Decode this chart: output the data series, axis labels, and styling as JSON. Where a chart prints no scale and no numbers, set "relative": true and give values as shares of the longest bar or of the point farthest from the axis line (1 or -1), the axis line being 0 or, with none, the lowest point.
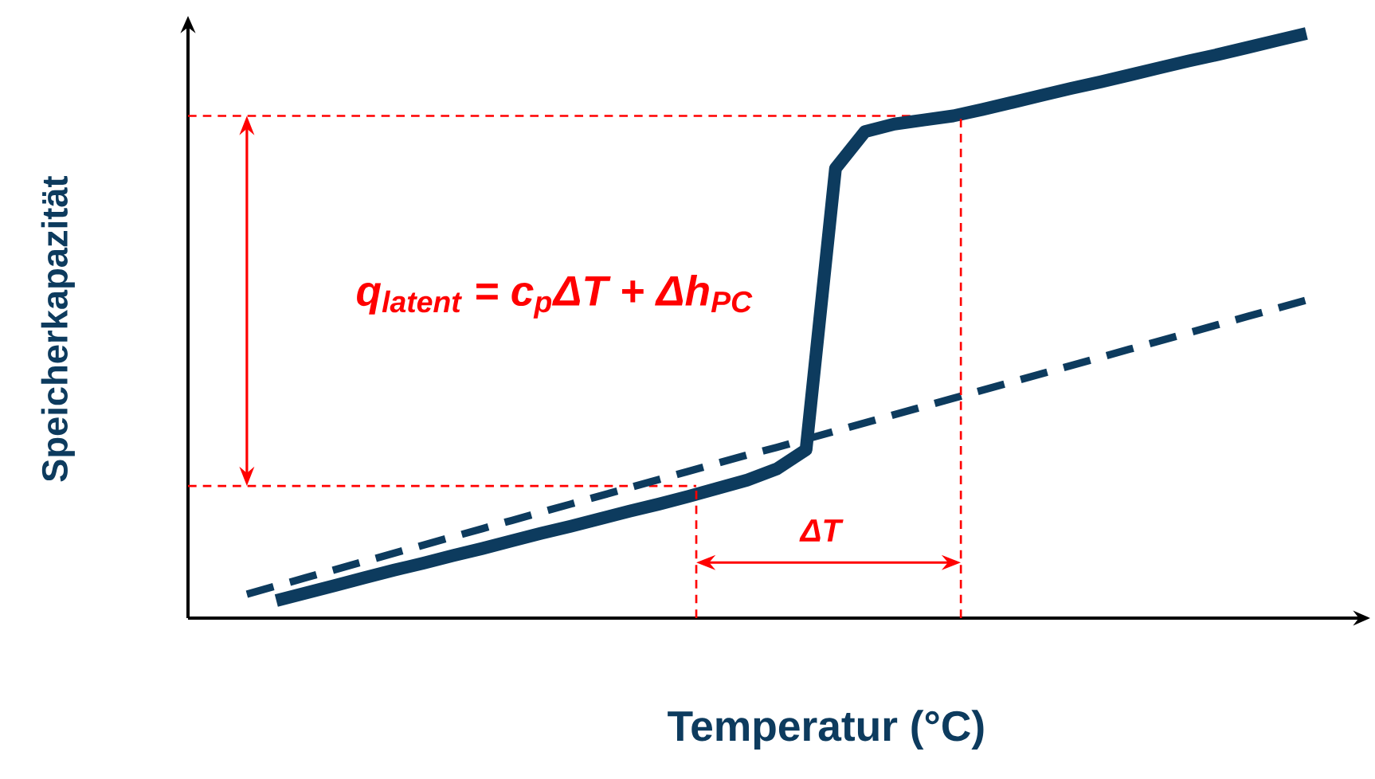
{
  "chart_data": {
    "type": "line",
    "relative": true,
    "tick_labels": false,
    "xlabel": "Temperatur (°C)",
    "ylabel": "Speicherkapazität",
    "categories": [
      null,
      null,
      null,
      null,
      null,
      null,
      null,
      null,
      null,
      null,
      null,
      null,
      null,
      null,
      null,
      null,
      null,
      null,
      null,
      null,
      null,
      null,
      null,
      null,
      null,
      null,
      null,
      null,
      null,
      null,
      null,
      null,
      null,
      null,
      null,
      null,
      null
    ],
    "series": [
      {
        "color": "#0d3b5e",
        "line_style": "solid",
        "values": [
          null,
          0.03,
          0.043,
          0.056,
          0.069,
          0.082,
          0.094,
          0.107,
          0.119,
          0.132,
          0.145,
          0.157,
          0.17,
          0.183,
          0.195,
          0.208,
          0.222,
          0.236,
          0.255,
          0.288,
          0.769,
          0.832,
          0.845,
          0.852,
          0.859,
          0.87,
          0.882,
          0.894,
          0.906,
          0.917,
          0.929,
          0.941,
          0.953,
          0.964,
          0.976,
          0.988,
          1.0
        ]
      },
      {
        "color": "#0d3b5e",
        "line_style": "dashed",
        "values": [
          0.041,
          0.055,
          0.069,
          0.083,
          0.097,
          0.111,
          0.125,
          0.139,
          0.153,
          0.167,
          0.181,
          0.195,
          0.209,
          0.223,
          0.237,
          0.251,
          0.265,
          0.279,
          0.292,
          0.306,
          0.32,
          0.334,
          0.348,
          0.362,
          0.376,
          0.39,
          0.404,
          0.418,
          0.432,
          0.446,
          0.46,
          0.474,
          0.488,
          0.502,
          0.516,
          0.53,
          0.544
        ]
      }
    ],
    "ref_lines": [
      {
        "axis": "y",
        "value": 0.226,
        "color": "#ff0000",
        "line_style": "dashed"
      },
      {
        "axis": "y",
        "value": 0.859,
        "color": "#ff0000",
        "line_style": "dashed"
      }
    ],
    "annotations": [
      "q$_{latent}$ = c$_{p}$ΔT + Δh$_{PC}$",
      "ΔT"
    ]
  }
}
